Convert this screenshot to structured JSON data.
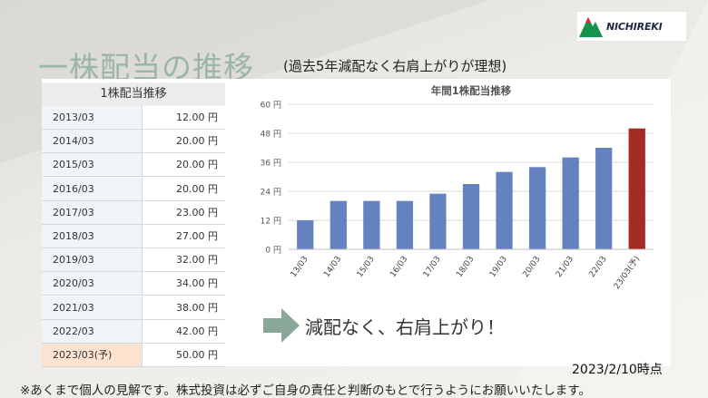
{
  "logo": {
    "text": "NICHIREKI"
  },
  "title": "一株配当の推移",
  "subtitle": "(過去5年減配なく右肩上がりが理想)",
  "table": {
    "header": "1株配当推移",
    "rows": [
      {
        "year": "2013/03",
        "value": "12.00 円"
      },
      {
        "year": "2014/03",
        "value": "20.00 円"
      },
      {
        "year": "2015/03",
        "value": "20.00 円"
      },
      {
        "year": "2016/03",
        "value": "20.00 円"
      },
      {
        "year": "2017/03",
        "value": "23.00 円"
      },
      {
        "year": "2018/03",
        "value": "27.00 円"
      },
      {
        "year": "2019/03",
        "value": "32.00 円"
      },
      {
        "year": "2020/03",
        "value": "34.00 円"
      },
      {
        "year": "2021/03",
        "value": "38.00 円"
      },
      {
        "year": "2022/03",
        "value": "42.00 円"
      },
      {
        "year": "2023/03(予)",
        "value": "50.00 円"
      }
    ]
  },
  "chart_data": {
    "type": "bar",
    "title": "年間1株配当推移",
    "categories": [
      "13/03",
      "14/03",
      "15/03",
      "16/03",
      "17/03",
      "18/03",
      "19/03",
      "20/03",
      "21/03",
      "22/03",
      "23/03(予)"
    ],
    "values": [
      12,
      20,
      20,
      20,
      23,
      27,
      32,
      34,
      38,
      42,
      50
    ],
    "ylim": [
      0,
      60
    ],
    "yticks": [
      "0 円",
      "12 円",
      "24 円",
      "36 円",
      "48 円",
      "60 円"
    ],
    "grid": true,
    "colors": {
      "actual": "#6482bf",
      "forecast": "#a32b1f"
    }
  },
  "callout": "減配なく、右肩上がり！",
  "as_of": "2023/2/10時点",
  "disclaimer": "※あくまで個人の見解です。株式投資は必ずご自身の責任と判断のもとで行うようにお願いいたします。"
}
